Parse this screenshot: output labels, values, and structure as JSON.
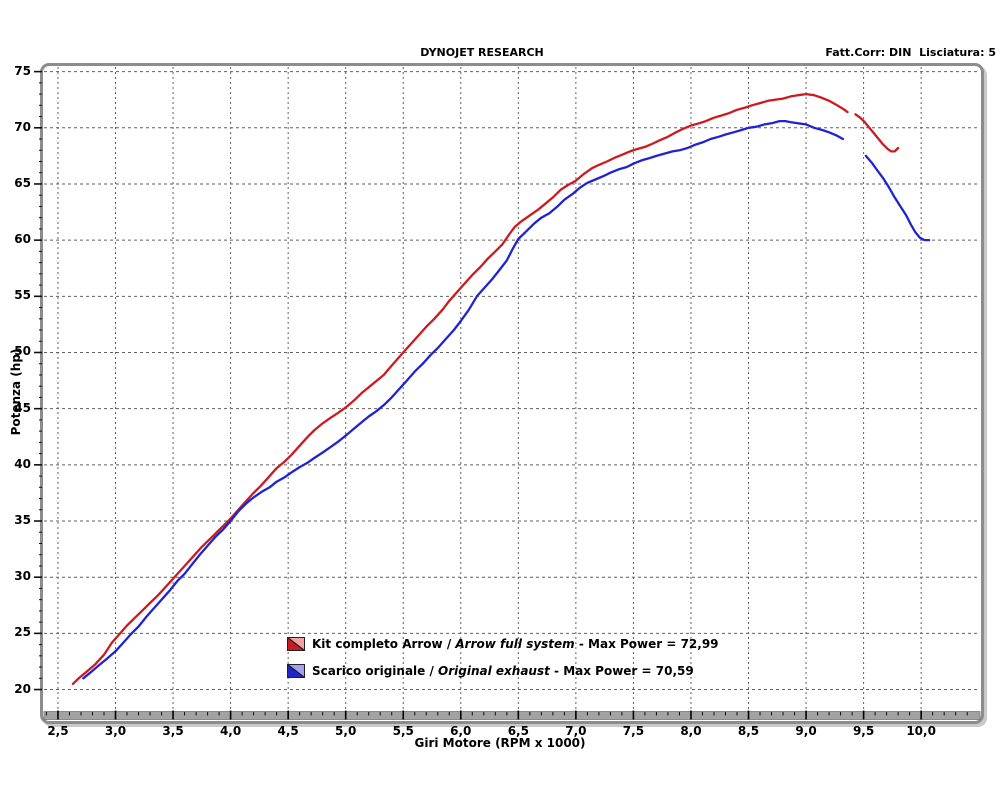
{
  "header": {
    "center": "DYNOJET RESEARCH",
    "right": "Fatt.Corr: DIN  Lisciatura: 5"
  },
  "legend": {
    "items": [
      {
        "name_it": "Kit completo Arrow",
        "sep": " / ",
        "name_en": "Arrow full system",
        "max_prefix": " - Max Power = ",
        "value": "72,99"
      },
      {
        "name_it": "Scarico originale",
        "sep": " / ",
        "name_en": "Original exhaust",
        "max_prefix": " - Max Power = ",
        "value": "70,59"
      }
    ]
  },
  "chart_data": {
    "type": "line",
    "title": "DYNOJET RESEARCH",
    "xlabel": "Giri Motore (RPM x 1000)",
    "ylabel": "Potenza (hp)",
    "xlim": [
      2.37,
      10.52
    ],
    "ylim": [
      17.2,
      75.5
    ],
    "grid": "dashed",
    "legend_position": "inside-bottom-center",
    "x_major_ticks": [
      2.5,
      3.0,
      3.5,
      4.0,
      4.5,
      5.0,
      5.5,
      6.0,
      6.5,
      7.0,
      7.5,
      8.0,
      8.5,
      9.0,
      9.5,
      10.0
    ],
    "x_tick_labels": [
      "2,5",
      "3,0",
      "3,5",
      "4,0",
      "4,5",
      "5,0",
      "5,5",
      "6,0",
      "6,5",
      "7,0",
      "7,5",
      "8,0",
      "8,5",
      "9,0",
      "9,5",
      "10,0"
    ],
    "x_minor_step": 0.1,
    "x_minor_range": [
      2.4,
      10.4
    ],
    "y_major_ticks": [
      20,
      25,
      30,
      35,
      40,
      45,
      50,
      55,
      60,
      65,
      70,
      75
    ],
    "y_tick_labels": [
      "20",
      "25",
      "30",
      "35",
      "40",
      "45",
      "50",
      "55",
      "60",
      "65",
      "70",
      "75"
    ],
    "y_minor_step": 1,
    "colors": {
      "grid": "#606060",
      "frame": "#8c8c8c",
      "ruler": "#a2a2a2",
      "tick": "#111111"
    },
    "series": [
      {
        "name": "Kit completo Arrow / Arrow full system",
        "max_power": 72.99,
        "color": "#cb1b20",
        "light_color": "#f5a0a2",
        "segments": [
          [
            [
              2.63,
              20.5
            ],
            [
              2.68,
              21.0
            ],
            [
              2.75,
              21.6
            ],
            [
              2.82,
              22.2
            ],
            [
              2.9,
              23.1
            ],
            [
              2.97,
              24.2
            ],
            [
              3.04,
              25.0
            ],
            [
              3.1,
              25.7
            ],
            [
              3.17,
              26.4
            ],
            [
              3.24,
              27.1
            ],
            [
              3.3,
              27.7
            ],
            [
              3.37,
              28.4
            ],
            [
              3.45,
              29.3
            ],
            [
              3.52,
              30.1
            ],
            [
              3.6,
              31.0
            ],
            [
              3.68,
              31.9
            ],
            [
              3.75,
              32.7
            ],
            [
              3.83,
              33.5
            ],
            [
              3.9,
              34.2
            ],
            [
              3.98,
              35.0
            ],
            [
              4.05,
              35.8
            ],
            [
              4.12,
              36.6
            ],
            [
              4.2,
              37.5
            ],
            [
              4.26,
              38.1
            ],
            [
              4.33,
              38.9
            ],
            [
              4.4,
              39.7
            ],
            [
              4.47,
              40.3
            ],
            [
              4.53,
              40.9
            ],
            [
              4.6,
              41.7
            ],
            [
              4.67,
              42.5
            ],
            [
              4.73,
              43.1
            ],
            [
              4.8,
              43.7
            ],
            [
              4.87,
              44.2
            ],
            [
              4.93,
              44.6
            ],
            [
              5.0,
              45.1
            ],
            [
              5.07,
              45.7
            ],
            [
              5.14,
              46.4
            ],
            [
              5.2,
              46.9
            ],
            [
              5.27,
              47.5
            ],
            [
              5.33,
              48.0
            ],
            [
              5.38,
              48.6
            ],
            [
              5.44,
              49.3
            ],
            [
              5.5,
              50.0
            ],
            [
              5.57,
              50.8
            ],
            [
              5.64,
              51.6
            ],
            [
              5.7,
              52.3
            ],
            [
              5.77,
              53.0
            ],
            [
              5.84,
              53.8
            ],
            [
              5.9,
              54.6
            ],
            [
              5.97,
              55.4
            ],
            [
              6.03,
              56.1
            ],
            [
              6.1,
              56.9
            ],
            [
              6.17,
              57.6
            ],
            [
              6.23,
              58.3
            ],
            [
              6.3,
              59.0
            ],
            [
              6.36,
              59.6
            ],
            [
              6.42,
              60.5
            ],
            [
              6.47,
              61.2
            ],
            [
              6.53,
              61.7
            ],
            [
              6.6,
              62.2
            ],
            [
              6.67,
              62.7
            ],
            [
              6.73,
              63.2
            ],
            [
              6.8,
              63.8
            ],
            [
              6.87,
              64.5
            ],
            [
              6.93,
              64.9
            ],
            [
              7.0,
              65.3
            ],
            [
              7.07,
              65.9
            ],
            [
              7.14,
              66.4
            ],
            [
              7.2,
              66.7
            ],
            [
              7.27,
              67.0
            ],
            [
              7.33,
              67.3
            ],
            [
              7.4,
              67.6
            ],
            [
              7.47,
              67.9
            ],
            [
              7.53,
              68.1
            ],
            [
              7.6,
              68.3
            ],
            [
              7.67,
              68.6
            ],
            [
              7.73,
              68.9
            ],
            [
              7.8,
              69.2
            ],
            [
              7.87,
              69.6
            ],
            [
              7.93,
              69.9
            ],
            [
              8.0,
              70.2
            ],
            [
              8.07,
              70.4
            ],
            [
              8.13,
              70.6
            ],
            [
              8.2,
              70.9
            ],
            [
              8.27,
              71.1
            ],
            [
              8.33,
              71.3
            ],
            [
              8.4,
              71.6
            ],
            [
              8.47,
              71.8
            ],
            [
              8.53,
              72.0
            ],
            [
              8.6,
              72.2
            ],
            [
              8.67,
              72.4
            ],
            [
              8.73,
              72.5
            ],
            [
              8.8,
              72.6
            ],
            [
              8.87,
              72.8
            ],
            [
              8.93,
              72.9
            ],
            [
              9.0,
              73.0
            ],
            [
              9.07,
              72.9
            ],
            [
              9.13,
              72.7
            ],
            [
              9.2,
              72.4
            ],
            [
              9.27,
              72.0
            ],
            [
              9.32,
              71.7
            ],
            [
              9.36,
              71.4
            ]
          ],
          [
            [
              9.43,
              71.2
            ],
            [
              9.47,
              70.9
            ],
            [
              9.51,
              70.5
            ],
            [
              9.55,
              70.0
            ],
            [
              9.59,
              69.5
            ],
            [
              9.63,
              69.0
            ],
            [
              9.67,
              68.5
            ],
            [
              9.71,
              68.1
            ],
            [
              9.74,
              67.9
            ],
            [
              9.77,
              67.9
            ],
            [
              9.8,
              68.2
            ]
          ]
        ]
      },
      {
        "name": "Scarico originale / Original exhaust",
        "max_power": 70.59,
        "color": "#2024cf",
        "light_color": "#9ea4f0",
        "segments": [
          [
            [
              2.72,
              21.0
            ],
            [
              2.78,
              21.5
            ],
            [
              2.85,
              22.1
            ],
            [
              2.92,
              22.7
            ],
            [
              3.0,
              23.4
            ],
            [
              3.07,
              24.2
            ],
            [
              3.14,
              25.0
            ],
            [
              3.2,
              25.6
            ],
            [
              3.27,
              26.5
            ],
            [
              3.34,
              27.3
            ],
            [
              3.4,
              28.0
            ],
            [
              3.47,
              28.8
            ],
            [
              3.54,
              29.7
            ],
            [
              3.6,
              30.3
            ],
            [
              3.67,
              31.2
            ],
            [
              3.74,
              32.1
            ],
            [
              3.8,
              32.8
            ],
            [
              3.87,
              33.6
            ],
            [
              3.94,
              34.3
            ],
            [
              4.0,
              35.0
            ],
            [
              4.07,
              35.9
            ],
            [
              4.14,
              36.6
            ],
            [
              4.2,
              37.1
            ],
            [
              4.27,
              37.6
            ],
            [
              4.34,
              38.0
            ],
            [
              4.4,
              38.5
            ],
            [
              4.47,
              38.9
            ],
            [
              4.54,
              39.4
            ],
            [
              4.6,
              39.8
            ],
            [
              4.67,
              40.2
            ],
            [
              4.74,
              40.7
            ],
            [
              4.8,
              41.1
            ],
            [
              4.87,
              41.6
            ],
            [
              4.94,
              42.1
            ],
            [
              5.0,
              42.6
            ],
            [
              5.07,
              43.2
            ],
            [
              5.14,
              43.8
            ],
            [
              5.2,
              44.3
            ],
            [
              5.27,
              44.8
            ],
            [
              5.34,
              45.4
            ],
            [
              5.4,
              46.0
            ],
            [
              5.47,
              46.8
            ],
            [
              5.54,
              47.6
            ],
            [
              5.6,
              48.3
            ],
            [
              5.67,
              49.0
            ],
            [
              5.74,
              49.8
            ],
            [
              5.8,
              50.4
            ],
            [
              5.87,
              51.2
            ],
            [
              5.94,
              52.0
            ],
            [
              6.0,
              52.8
            ],
            [
              6.07,
              53.8
            ],
            [
              6.14,
              55.0
            ],
            [
              6.2,
              55.7
            ],
            [
              6.27,
              56.5
            ],
            [
              6.34,
              57.4
            ],
            [
              6.4,
              58.2
            ],
            [
              6.45,
              59.2
            ],
            [
              6.5,
              60.1
            ],
            [
              6.57,
              60.8
            ],
            [
              6.64,
              61.5
            ],
            [
              6.7,
              62.0
            ],
            [
              6.77,
              62.4
            ],
            [
              6.84,
              63.0
            ],
            [
              6.9,
              63.6
            ],
            [
              6.97,
              64.1
            ],
            [
              7.04,
              64.7
            ],
            [
              7.1,
              65.1
            ],
            [
              7.17,
              65.4
            ],
            [
              7.24,
              65.7
            ],
            [
              7.3,
              66.0
            ],
            [
              7.37,
              66.3
            ],
            [
              7.44,
              66.5
            ],
            [
              7.5,
              66.8
            ],
            [
              7.57,
              67.1
            ],
            [
              7.64,
              67.3
            ],
            [
              7.7,
              67.5
            ],
            [
              7.77,
              67.7
            ],
            [
              7.84,
              67.9
            ],
            [
              7.9,
              68.0
            ],
            [
              7.97,
              68.2
            ],
            [
              8.04,
              68.5
            ],
            [
              8.1,
              68.7
            ],
            [
              8.17,
              69.0
            ],
            [
              8.24,
              69.2
            ],
            [
              8.3,
              69.4
            ],
            [
              8.37,
              69.6
            ],
            [
              8.44,
              69.8
            ],
            [
              8.5,
              70.0
            ],
            [
              8.57,
              70.1
            ],
            [
              8.64,
              70.3
            ],
            [
              8.7,
              70.4
            ],
            [
              8.77,
              70.6
            ],
            [
              8.82,
              70.6
            ],
            [
              8.87,
              70.5
            ],
            [
              8.93,
              70.4
            ],
            [
              9.0,
              70.3
            ],
            [
              9.07,
              70.0
            ],
            [
              9.14,
              69.8
            ],
            [
              9.2,
              69.6
            ],
            [
              9.27,
              69.3
            ],
            [
              9.32,
              69.0
            ]
          ],
          [
            [
              9.52,
              67.5
            ],
            [
              9.57,
              66.9
            ],
            [
              9.62,
              66.2
            ],
            [
              9.67,
              65.5
            ],
            [
              9.72,
              64.7
            ],
            [
              9.77,
              63.8
            ],
            [
              9.82,
              63.0
            ],
            [
              9.87,
              62.2
            ],
            [
              9.91,
              61.4
            ],
            [
              9.95,
              60.7
            ],
            [
              9.99,
              60.2
            ],
            [
              10.03,
              60.0
            ],
            [
              10.07,
              60.0
            ]
          ]
        ]
      }
    ]
  }
}
